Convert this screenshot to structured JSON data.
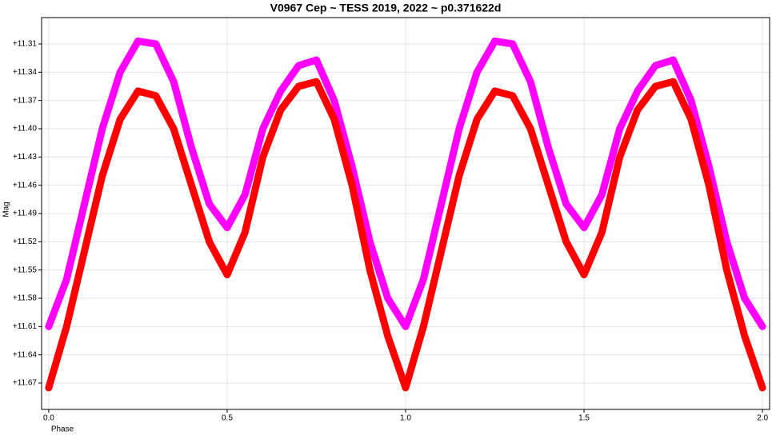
{
  "chart_data": {
    "type": "line",
    "title": "V0967 Cep ~ TESS 2019, 2022 ~ p0.371622d",
    "x_label": "Phase",
    "y_label": "Mag",
    "x": [
      0,
      0.05,
      0.1,
      0.15,
      0.2,
      0.25,
      0.3,
      0.35,
      0.4,
      0.45,
      0.5,
      0.55,
      0.6,
      0.65,
      0.7,
      0.75,
      0.8,
      0.85,
      0.9,
      0.95,
      1.0,
      1.05,
      1.1,
      1.15,
      1.2,
      1.25,
      1.3,
      1.35,
      1.4,
      1.45,
      1.5,
      1.55,
      1.6,
      1.65,
      1.7,
      1.75,
      1.8,
      1.85,
      1.9,
      1.95,
      2.0
    ],
    "series": [
      {
        "color": "#ff00ff",
        "values": [
          11.61,
          11.56,
          11.48,
          11.4,
          11.34,
          11.307,
          11.31,
          11.35,
          11.42,
          11.48,
          11.505,
          11.47,
          11.4,
          11.36,
          11.333,
          11.327,
          11.37,
          11.44,
          11.52,
          11.58,
          11.61,
          11.56,
          11.48,
          11.4,
          11.34,
          11.307,
          11.31,
          11.35,
          11.42,
          11.48,
          11.505,
          11.47,
          11.4,
          11.36,
          11.333,
          11.327,
          11.37,
          11.44,
          11.52,
          11.58,
          11.61
        ]
      },
      {
        "color": "#ff0000",
        "values": [
          11.675,
          11.61,
          11.53,
          11.45,
          11.39,
          11.36,
          11.365,
          11.4,
          11.46,
          11.52,
          11.555,
          11.51,
          11.43,
          11.38,
          11.355,
          11.35,
          11.39,
          11.46,
          11.55,
          11.62,
          11.675,
          11.61,
          11.53,
          11.45,
          11.39,
          11.36,
          11.365,
          11.4,
          11.46,
          11.52,
          11.555,
          11.51,
          11.43,
          11.38,
          11.355,
          11.35,
          11.39,
          11.46,
          11.55,
          11.62,
          11.675
        ]
      }
    ],
    "xlim": [
      -0.02,
      2.02
    ],
    "xticks": [
      {
        "value": 0,
        "label": "0.0"
      },
      0.5,
      {
        "value": 1,
        "label": "1.0"
      },
      1.5,
      {
        "value": 2,
        "label": "2.0"
      }
    ],
    "ylim": [
      11.282,
      11.698
    ],
    "invert_y": true,
    "yticks": [
      {
        "value": 11.31,
        "label": "+11.31"
      },
      {
        "value": 11.34,
        "label": "+11.34"
      },
      {
        "value": 11.37,
        "label": "+11.37"
      },
      {
        "value": 11.4,
        "label": "+11.40"
      },
      {
        "value": 11.43,
        "label": "+11.43"
      },
      {
        "value": 11.46,
        "label": "+11.46"
      },
      {
        "value": 11.49,
        "label": "+11.49"
      },
      {
        "value": 11.52,
        "label": "+11.52"
      },
      {
        "value": 11.55,
        "label": "+11.55"
      },
      {
        "value": 11.58,
        "label": "+11.58"
      },
      {
        "value": 11.61,
        "label": "+11.61"
      },
      {
        "value": 11.64,
        "label": "+11.64"
      },
      {
        "value": 11.67,
        "label": "+11.67"
      }
    ],
    "grid": true
  }
}
